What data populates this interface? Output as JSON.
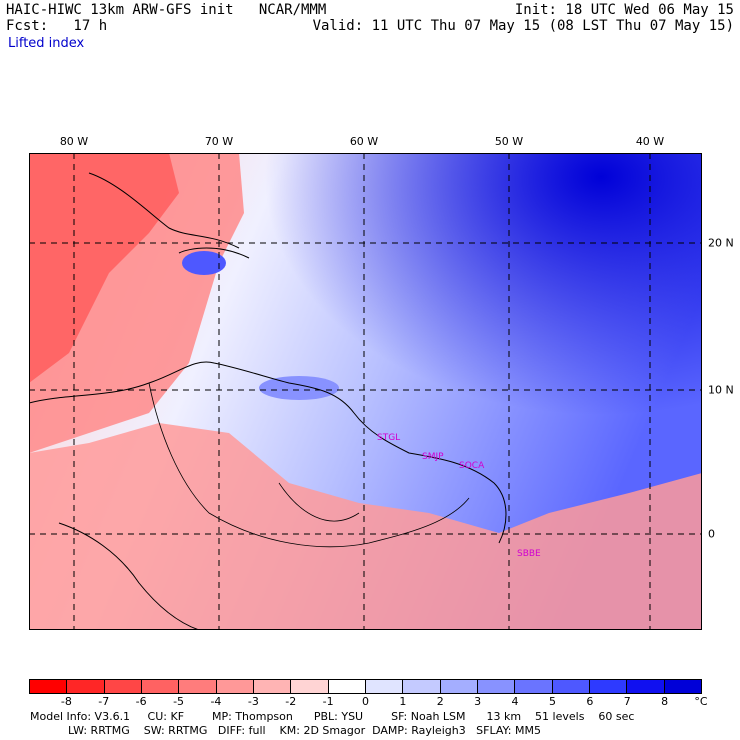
{
  "header": {
    "title": "HAIC-HIWC 13km ARW-GFS init   NCAR/MMM",
    "fcst": "Fcst:   17 h",
    "init": "Init: 18 UTC Wed 06 May 15",
    "valid": "Valid: 11 UTC Thu 07 May 15 (08 LST Thu 07 May 15)",
    "field": "Lifted index"
  },
  "lon_labels": [
    "80 W",
    "70 W",
    "60 W",
    "50 W",
    "40 W"
  ],
  "lat_labels": [
    "20 N",
    "10 N",
    "0"
  ],
  "stations": [
    "STGL",
    "SMJP",
    "SOCA",
    "SBBE"
  ],
  "colorbar": {
    "labels": [
      "-8",
      "-7",
      "-6",
      "-5",
      "-4",
      "-3",
      "-2",
      "-1",
      "0",
      "1",
      "2",
      "3",
      "4",
      "5",
      "6",
      "7",
      "8"
    ],
    "unit": "°C",
    "colors": [
      "#ff0000",
      "#ff2626",
      "#ff4646",
      "#ff6262",
      "#ff7c7c",
      "#ff9898",
      "#ffb4b4",
      "#ffd4d4",
      "#ffffff",
      "#e0e4ff",
      "#c4caff",
      "#a4aeff",
      "#8892ff",
      "#6a74ff",
      "#4e58ff",
      "#2e3aff",
      "#1010f0",
      "#0000d8"
    ]
  },
  "footer": {
    "line1": "Model Info: V3.6.1     CU: KF        MP: Thompson      PBL: YSU        SF: Noah LSM      13 km    51 levels    60 sec",
    "line2": "LW: RRTMG    SW: RRTMG   DIFF: full    KM: 2D Smagor  DAMP: Rayleigh3   SFLAY: MM5"
  }
}
